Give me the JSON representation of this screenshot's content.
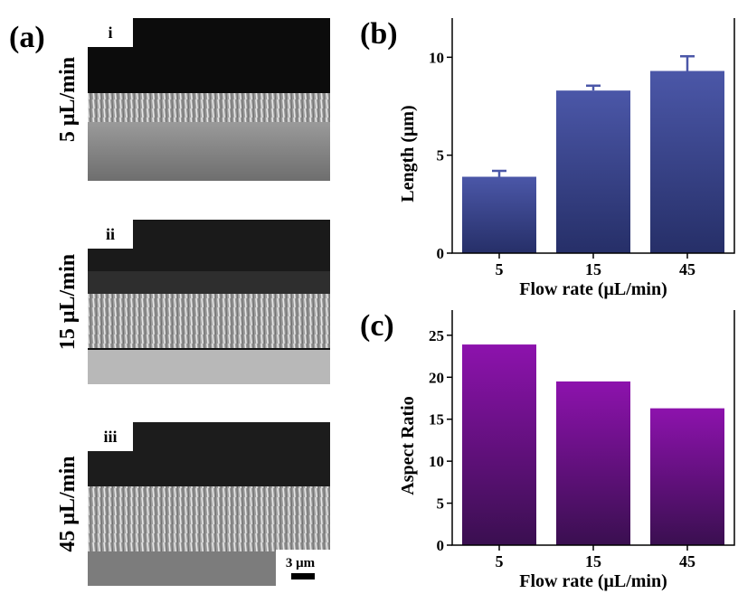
{
  "panel_a": {
    "label": "(a)",
    "scale_bar": "3 μm",
    "images": [
      {
        "tag": "i",
        "label": "5 μL/min"
      },
      {
        "tag": "ii",
        "label": "15 μL/min"
      },
      {
        "tag": "iii",
        "label": "45 μL/min"
      }
    ]
  },
  "chart_data": [
    {
      "type": "bar",
      "panel": "(b)",
      "ylabel": "Length (μm)",
      "xlabel": "Flow rate (μL/min)",
      "categories": [
        "5",
        "15",
        "45"
      ],
      "values": [
        3.9,
        8.3,
        9.3
      ],
      "errors": [
        0.3,
        0.25,
        0.75
      ],
      "color": [
        "#4b57a8",
        "#262f68"
      ],
      "ylim": [
        0,
        12
      ],
      "yticks": [
        0,
        5,
        10
      ]
    },
    {
      "type": "bar",
      "panel": "(c)",
      "ylabel": "Aspect Ratio",
      "xlabel": "Flow rate (μL/min)",
      "categories": [
        "5",
        "15",
        "45"
      ],
      "values": [
        23.9,
        19.5,
        16.3
      ],
      "color": [
        "#8d12ad",
        "#3a0f50"
      ],
      "ylim": [
        0,
        28
      ],
      "yticks": [
        0,
        5,
        10,
        15,
        20,
        25
      ]
    }
  ]
}
